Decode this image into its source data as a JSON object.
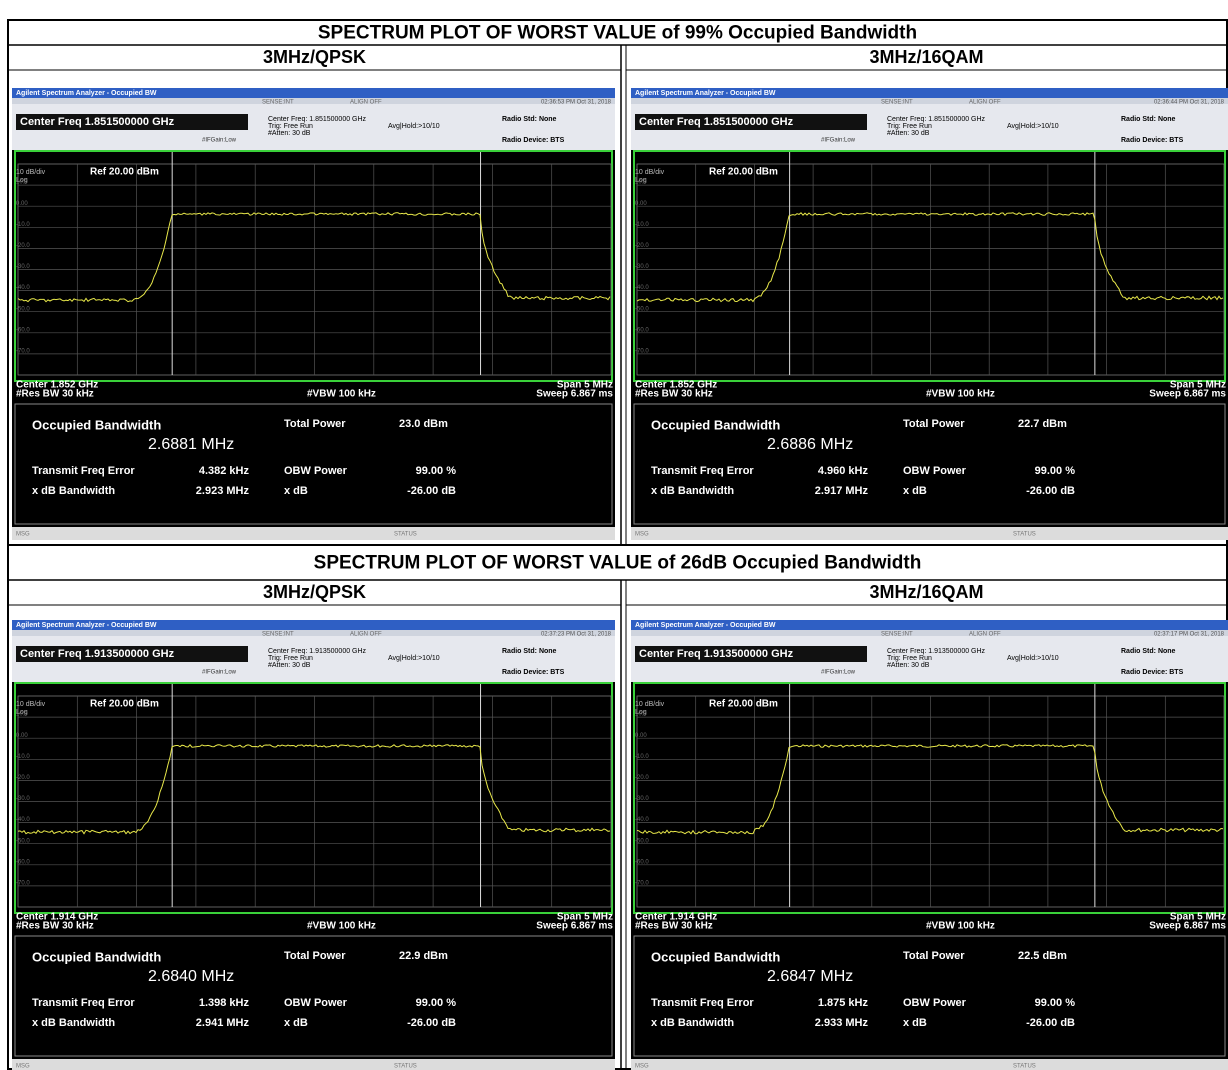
{
  "sections": [
    {
      "title": "SPECTRUM PLOT OF WORST VALUE of 99% Occupied Bandwidth",
      "columns": [
        {
          "heading": "3MHz/QPSK",
          "panel": {
            "window_title": "Agilent Spectrum Analyzer - Occupied BW",
            "sense": "SENSE:INT",
            "align": "ALIGN OFF",
            "timestamp": "02:36:53 PM Oct 31, 2018",
            "center_freq": "Center Freq 1.851500000 GHz",
            "center_freq_small": "Center Freq: 1.851500000 GHz",
            "trig": "Trig: Free Run",
            "avg_hold": "Avg|Hold:>10/10",
            "atten": "#Atten: 30 dB",
            "if_gain": "#IFGain:Low",
            "radio_std": "Radio Std: None",
            "radio_device": "Radio Device: BTS",
            "scale": "10 dB/div",
            "ref": "Ref 20.00 dBm",
            "log": "Log",
            "y_labels": [
              "10.0",
              "0.00",
              "-10.0",
              "-20.0",
              "-30.0",
              "-40.0",
              "-50.0",
              "-60.0",
              "-70.0"
            ],
            "center": "Center 1.852 GHz",
            "res_bw": "#Res BW 30 kHz",
            "vbw": "#VBW 100 kHz",
            "span": "Span 5 MHz",
            "sweep": "Sweep 6.867 ms",
            "results": {
              "obw_label": "Occupied Bandwidth",
              "obw": "2.6881 MHz",
              "total_power_label": "Total Power",
              "total_power": "23.0 dBm",
              "freq_error_label": "Transmit Freq Error",
              "freq_error": "4.382 kHz",
              "obw_power_label": "OBW Power",
              "obw_power": "99.00 %",
              "xdb_bw_label": "x dB Bandwidth",
              "xdb_bw": "2.923 MHz",
              "xdb_label": "x dB",
              "xdb": "-26.00 dB"
            },
            "msg": "MSG",
            "status": "STATUS"
          }
        },
        {
          "heading": "3MHz/16QAM",
          "panel": {
            "window_title": "Agilent Spectrum Analyzer - Occupied BW",
            "sense": "SENSE:INT",
            "align": "ALIGN OFF",
            "timestamp": "02:36:44 PM Oct 31, 2018",
            "center_freq": "Center Freq 1.851500000 GHz",
            "center_freq_small": "Center Freq: 1.851500000 GHz",
            "trig": "Trig: Free Run",
            "avg_hold": "Avg|Hold:>10/10",
            "atten": "#Atten: 30 dB",
            "if_gain": "#IFGain:Low",
            "radio_std": "Radio Std: None",
            "radio_device": "Radio Device: BTS",
            "scale": "10 dB/div",
            "ref": "Ref 20.00 dBm",
            "log": "Log",
            "y_labels": [
              "10.0",
              "0.00",
              "-10.0",
              "-20.0",
              "-30.0",
              "-40.0",
              "-50.0",
              "-60.0",
              "-70.0"
            ],
            "center": "Center 1.852 GHz",
            "res_bw": "#Res BW 30 kHz",
            "vbw": "#VBW 100 kHz",
            "span": "Span 5 MHz",
            "sweep": "Sweep 6.867 ms",
            "results": {
              "obw_label": "Occupied Bandwidth",
              "obw": "2.6886 MHz",
              "total_power_label": "Total Power",
              "total_power": "22.7 dBm",
              "freq_error_label": "Transmit Freq Error",
              "freq_error": "4.960 kHz",
              "obw_power_label": "OBW Power",
              "obw_power": "99.00 %",
              "xdb_bw_label": "x dB Bandwidth",
              "xdb_bw": "2.917 MHz",
              "xdb_label": "x dB",
              "xdb": "-26.00 dB"
            },
            "msg": "MSG",
            "status": "STATUS"
          }
        }
      ]
    },
    {
      "title": "SPECTRUM PLOT OF WORST VALUE of 26dB Occupied Bandwidth",
      "columns": [
        {
          "heading": "3MHz/QPSK",
          "panel": {
            "window_title": "Agilent Spectrum Analyzer - Occupied BW",
            "sense": "SENSE:INT",
            "align": "ALIGN OFF",
            "timestamp": "02:37:23 PM Oct 31, 2018",
            "center_freq": "Center Freq 1.913500000 GHz",
            "center_freq_small": "Center Freq: 1.913500000 GHz",
            "trig": "Trig: Free Run",
            "avg_hold": "Avg|Hold:>10/10",
            "atten": "#Atten: 30 dB",
            "if_gain": "#IFGain:Low",
            "radio_std": "Radio Std: None",
            "radio_device": "Radio Device: BTS",
            "scale": "10 dB/div",
            "ref": "Ref 20.00 dBm",
            "log": "Log",
            "y_labels": [
              "10.0",
              "0.00",
              "-10.0",
              "-20.0",
              "-30.0",
              "-40.0",
              "-50.0",
              "-60.0",
              "-70.0"
            ],
            "center": "Center 1.914 GHz",
            "res_bw": "#Res BW 30 kHz",
            "vbw": "#VBW 100 kHz",
            "span": "Span 5 MHz",
            "sweep": "Sweep 6.867 ms",
            "results": {
              "obw_label": "Occupied Bandwidth",
              "obw": "2.6840 MHz",
              "total_power_label": "Total Power",
              "total_power": "22.9 dBm",
              "freq_error_label": "Transmit Freq Error",
              "freq_error": "1.398 kHz",
              "obw_power_label": "OBW Power",
              "obw_power": "99.00 %",
              "xdb_bw_label": "x dB Bandwidth",
              "xdb_bw": "2.941 MHz",
              "xdb_label": "x dB",
              "xdb": "-26.00 dB"
            },
            "msg": "MSG",
            "status": "STATUS"
          }
        },
        {
          "heading": "3MHz/16QAM",
          "panel": {
            "window_title": "Agilent Spectrum Analyzer - Occupied BW",
            "sense": "SENSE:INT",
            "align": "ALIGN OFF",
            "timestamp": "02:37:17 PM Oct 31, 2018",
            "center_freq": "Center Freq 1.913500000 GHz",
            "center_freq_small": "Center Freq: 1.913500000 GHz",
            "trig": "Trig: Free Run",
            "avg_hold": "Avg|Hold:>10/10",
            "atten": "#Atten: 30 dB",
            "if_gain": "#IFGain:Low",
            "radio_std": "Radio Std: None",
            "radio_device": "Radio Device: BTS",
            "scale": "10 dB/div",
            "ref": "Ref 20.00 dBm",
            "log": "Log",
            "y_labels": [
              "10.0",
              "0.00",
              "-10.0",
              "-20.0",
              "-30.0",
              "-40.0",
              "-50.0",
              "-60.0",
              "-70.0"
            ],
            "center": "Center 1.914 GHz",
            "res_bw": "#Res BW 30 kHz",
            "vbw": "#VBW 100 kHz",
            "span": "Span 5 MHz",
            "sweep": "Sweep 6.867 ms",
            "results": {
              "obw_label": "Occupied Bandwidth",
              "obw": "2.6847 MHz",
              "total_power_label": "Total Power",
              "total_power": "22.5 dBm",
              "freq_error_label": "Transmit Freq Error",
              "freq_error": "1.875 kHz",
              "obw_power_label": "OBW Power",
              "obw_power": "99.00 %",
              "xdb_bw_label": "x dB Bandwidth",
              "xdb_bw": "2.933 MHz",
              "xdb_label": "x dB",
              "xdb": "-26.00 dB"
            },
            "msg": "MSG",
            "status": "STATUS"
          }
        }
      ]
    }
  ]
}
